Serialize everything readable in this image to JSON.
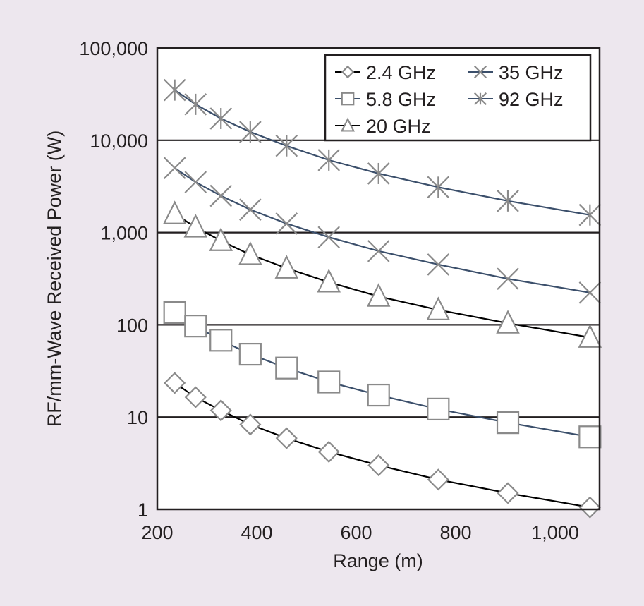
{
  "chart_data": {
    "type": "line",
    "title": "",
    "xlabel": "Range (m)",
    "ylabel": "RF/mm-Wave Received Power (W)",
    "xlim": [
      200,
      1090
    ],
    "ylim": [
      1,
      100000
    ],
    "yscale": "log",
    "grid": "horizontal major lines",
    "legend_position": "top-right",
    "x_ticks": [
      200,
      400,
      600,
      800,
      1000
    ],
    "x_tick_labels": [
      "200",
      "400",
      "600",
      "800",
      "1,000"
    ],
    "y_ticks": [
      1,
      10,
      100,
      1000,
      10000,
      100000
    ],
    "y_tick_labels": [
      "1",
      "10",
      "100",
      "1,000",
      "10,000",
      "100,000"
    ],
    "x": [
      235,
      277,
      328,
      387,
      460,
      545,
      645,
      765,
      905,
      1070
    ],
    "series": [
      {
        "name": "2.4 GHz",
        "marker": "diamond",
        "line_color": "#000000",
        "values": [
          23.4,
          16.4,
          11.8,
          8.3,
          5.9,
          4.2,
          3.0,
          2.1,
          1.5,
          1.05
        ]
      },
      {
        "name": "5.8 GHz",
        "marker": "square",
        "line_color": "#3b4f6b",
        "values": [
          136,
          97,
          68,
          48,
          34,
          24,
          17.3,
          12.2,
          8.7,
          6.1
        ]
      },
      {
        "name": "20 GHz",
        "marker": "triangle",
        "line_color": "#000000",
        "values": [
          1590,
          1143,
          815,
          576,
          410,
          290,
          203,
          145,
          104,
          73
        ]
      },
      {
        "name": "35 GHz",
        "marker": "x",
        "line_color": "#3b4f6b",
        "values": [
          5000,
          3520,
          2500,
          1770,
          1250,
          890,
          630,
          450,
          315,
          223
        ]
      },
      {
        "name": "92 GHz",
        "marker": "asterisk",
        "line_color": "#3b4f6b",
        "values": [
          35000,
          24500,
          17200,
          12300,
          8700,
          6100,
          4360,
          3100,
          2200,
          1550
        ]
      }
    ],
    "colors": {
      "marker": "#8a8a8a",
      "axis": "#231f20",
      "plot_bg": "#ffffff",
      "page_bg": "#EDE7EE"
    }
  }
}
